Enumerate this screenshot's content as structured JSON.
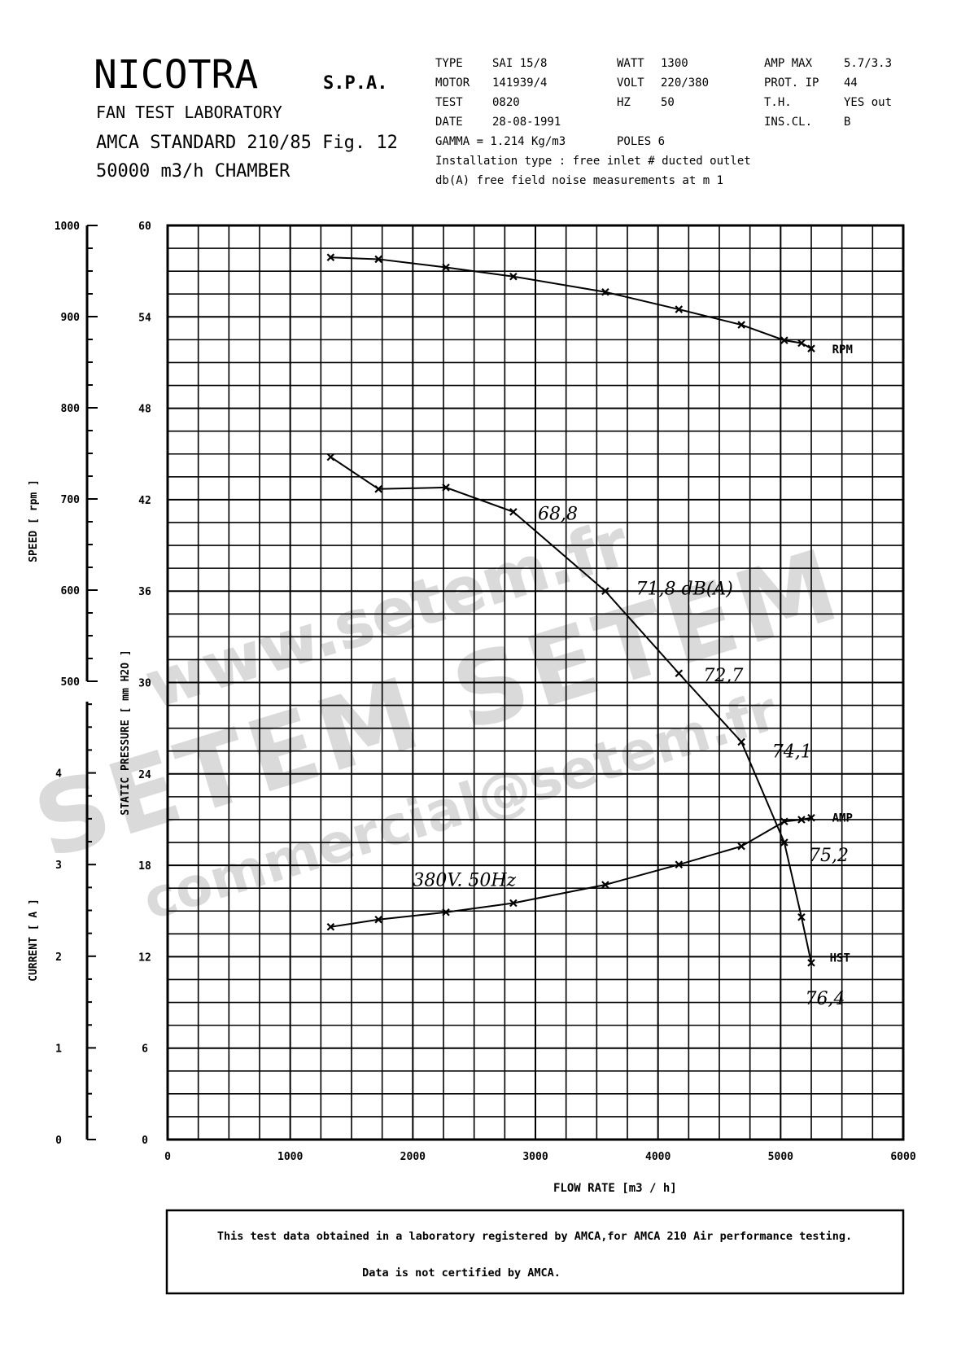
{
  "header": {
    "company": "NICOTRA",
    "company_suffix": "S.P.A.",
    "lab": "FAN TEST LABORATORY",
    "standard": "AMCA STANDARD 210/85 Fig. 12",
    "chamber": "50000 m3/h  CHAMBER"
  },
  "specs": {
    "type_label": "TYPE",
    "type_value": "SAI 15/8",
    "motor_label": "MOTOR",
    "motor_value": "141939/4",
    "test_label": "TEST",
    "test_value": "0820",
    "date_label": "DATE",
    "date_value": "28-08-1991",
    "gamma": "GAMMA = 1.214 Kg/m3",
    "poles": "POLES 6",
    "watt_label": "WATT",
    "watt_value": "1300",
    "volt_label": "VOLT",
    "volt_value": "220/380",
    "hz_label": "HZ",
    "hz_value": "50",
    "ampmax_label": "AMP MAX",
    "ampmax_value": "5.7/3.3",
    "prot_label": "PROT.  IP",
    "prot_value": "44",
    "th_label": "T.H.",
    "th_value": "YES out",
    "inscl_label": "INS.CL.",
    "inscl_value": "B",
    "installation": "Installation type : free inlet # ducted outlet",
    "noise": "db(A) free field noise measurements at m  1"
  },
  "watermark": {
    "line1": "www.setem.fr",
    "line2": "SETEM SETEM",
    "line3": "commercial@setem.fr"
  },
  "footer": {
    "line1": "This test data obtained in a laboratory registered by AMCA,for AMCA 210 Air performance testing.",
    "line2": "Data is not certified by AMCA."
  },
  "chart_data": {
    "type": "line",
    "xlabel": "FLOW RATE  [m3 / h]",
    "xlim": [
      0,
      6000
    ],
    "x_ticks": [
      0,
      1000,
      2000,
      3000,
      4000,
      5000,
      6000
    ],
    "grid": true,
    "axes": {
      "speed": {
        "label": "SPEED   [ rpm ]",
        "range": [
          500,
          1000
        ],
        "ticks": [
          500,
          600,
          700,
          800,
          900,
          1000
        ]
      },
      "pressure": {
        "label": "STATIC PRESSURE   [ mm H2O ]",
        "range": [
          0,
          60
        ],
        "ticks": [
          0,
          6,
          12,
          18,
          24,
          30,
          36,
          42,
          48,
          54,
          60
        ]
      },
      "current": {
        "label": "CURRENT   [ A ]",
        "range": [
          0,
          5
        ],
        "ticks": [
          0,
          1,
          2,
          3,
          4
        ]
      }
    },
    "series": [
      {
        "name": "RPM",
        "axis": "speed",
        "points": [
          [
            1330,
            965
          ],
          [
            1720,
            963
          ],
          [
            2270,
            954
          ],
          [
            2820,
            944
          ],
          [
            3570,
            927
          ],
          [
            4170,
            908
          ],
          [
            4680,
            891
          ],
          [
            5030,
            874
          ],
          [
            5170,
            871
          ],
          [
            5250,
            865
          ]
        ]
      },
      {
        "name": "AMP",
        "axis": "current",
        "points": [
          [
            1330,
            2.32
          ],
          [
            1720,
            2.4
          ],
          [
            2270,
            2.48
          ],
          [
            2820,
            2.58
          ],
          [
            3570,
            2.78
          ],
          [
            4170,
            3.0
          ],
          [
            4680,
            3.2
          ],
          [
            5030,
            3.47
          ],
          [
            5170,
            3.49
          ],
          [
            5250,
            3.51
          ]
        ]
      },
      {
        "name": "HST",
        "axis": "pressure",
        "points": [
          [
            1330,
            44.8
          ],
          [
            1720,
            42.7
          ],
          [
            2270,
            42.8
          ],
          [
            2820,
            41.2
          ],
          [
            3570,
            36.0
          ],
          [
            4170,
            30.6
          ],
          [
            4680,
            26.1
          ],
          [
            5030,
            19.5
          ],
          [
            5170,
            14.6
          ],
          [
            5250,
            11.6
          ]
        ]
      }
    ],
    "annotations": [
      {
        "text": "RPM",
        "x": 5420,
        "axis": "speed",
        "y": 865
      },
      {
        "text": "AMP",
        "x": 5420,
        "axis": "current",
        "y": 3.52
      },
      {
        "text": "HST",
        "x": 5400,
        "axis": "pressure",
        "y": 12.0
      },
      {
        "text": "68,8",
        "x": 3020,
        "axis": "pressure",
        "y": 41.0
      },
      {
        "text": "71,8 dB(A)",
        "x": 3820,
        "axis": "pressure",
        "y": 36.1
      },
      {
        "text": "72,7",
        "x": 4370,
        "axis": "pressure",
        "y": 30.4
      },
      {
        "text": "74,1",
        "x": 4930,
        "axis": "pressure",
        "y": 25.4
      },
      {
        "text": "75,2",
        "x": 5230,
        "axis": "pressure",
        "y": 18.6
      },
      {
        "text": "76,4",
        "x": 5200,
        "axis": "pressure",
        "y": 9.2
      },
      {
        "text": "380V. 50Hz",
        "x": 2000,
        "axis": "current",
        "y": 2.82
      }
    ]
  }
}
